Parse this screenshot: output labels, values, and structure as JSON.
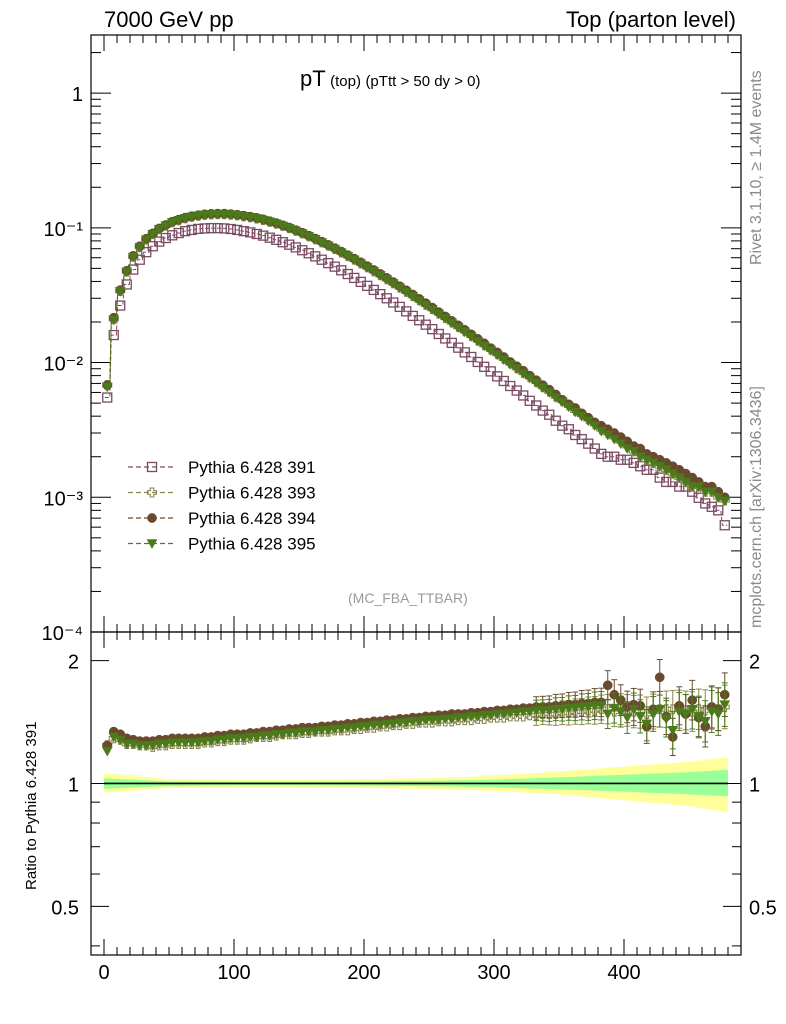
{
  "header": {
    "left": "7000 GeV pp",
    "right": "Top (parton level)"
  },
  "plot_title": {
    "main": "pT",
    "sub1": "(top)",
    "sub2": "(pTtt > 50 dy > 0)"
  },
  "analysis_tag": "(MC_FBA_TTBAR)",
  "side_labels": {
    "rivet": "Rivet 3.1.10, ≥ 1.4M events",
    "mcplots": "mcplots.cern.ch [arXiv:1306.3436]"
  },
  "colors": {
    "s391": "#7b4a62",
    "s393": "#8c8650",
    "s394": "#6a4a2e",
    "s395": "#4a7a1a",
    "band_outer": "#ffff99",
    "band_inner": "#99ff99"
  },
  "chart_data": [
    {
      "type": "scatter",
      "panel": "main",
      "title": "pT (top) (pTtt > 50 dy > 0)",
      "xlabel": "",
      "ylabel": "",
      "xlim": [
        -10,
        490
      ],
      "ylim": [
        0.0001,
        2.7
      ],
      "yscale": "log",
      "y_tick_labels": [
        "10⁻⁴",
        "10⁻³",
        "10⁻²",
        "10⁻¹",
        "1"
      ],
      "x": [
        2.5,
        7.5,
        12.5,
        17.5,
        22.5,
        27.5,
        32.5,
        37.5,
        42.5,
        47.5,
        52.5,
        57.5,
        62.5,
        67.5,
        72.5,
        77.5,
        82.5,
        87.5,
        92.5,
        97.5,
        102.5,
        107.5,
        112.5,
        117.5,
        122.5,
        127.5,
        132.5,
        137.5,
        142.5,
        147.5,
        152.5,
        157.5,
        162.5,
        167.5,
        172.5,
        177.5,
        182.5,
        187.5,
        192.5,
        197.5,
        202.5,
        207.5,
        212.5,
        217.5,
        222.5,
        227.5,
        232.5,
        237.5,
        242.5,
        247.5,
        252.5,
        257.5,
        262.5,
        267.5,
        272.5,
        277.5,
        282.5,
        287.5,
        292.5,
        297.5,
        302.5,
        307.5,
        312.5,
        317.5,
        322.5,
        327.5,
        332.5,
        337.5,
        342.5,
        347.5,
        352.5,
        357.5,
        362.5,
        367.5,
        372.5,
        377.5,
        382.5,
        387.5,
        392.5,
        397.5,
        402.5,
        407.5,
        412.5,
        417.5,
        422.5,
        427.5,
        432.5,
        437.5,
        442.5,
        447.5,
        452.5,
        457.5,
        462.5,
        467.5,
        472.5,
        477.5
      ],
      "series": [
        {
          "name": "Pythia 6.428 391",
          "marker": "open-square",
          "values": [
            0.0055,
            0.016,
            0.0265,
            0.038,
            0.049,
            0.058,
            0.066,
            0.073,
            0.079,
            0.084,
            0.088,
            0.0915,
            0.0945,
            0.0965,
            0.0982,
            0.099,
            0.0995,
            0.0995,
            0.099,
            0.098,
            0.0965,
            0.0945,
            0.0925,
            0.09,
            0.0875,
            0.0845,
            0.0815,
            0.0782,
            0.075,
            0.0716,
            0.0682,
            0.0648,
            0.0614,
            0.058,
            0.0547,
            0.0515,
            0.0484,
            0.0454,
            0.0425,
            0.0397,
            0.0371,
            0.0346,
            0.0322,
            0.03,
            0.0279,
            0.0259,
            0.024,
            0.0222,
            0.0206,
            0.0191,
            0.0177,
            0.0163,
            0.0151,
            0.014,
            0.0129,
            0.0119,
            0.011,
            0.0101,
            0.0093,
            0.0086,
            0.0079,
            0.0073,
            0.0067,
            0.0062,
            0.0057,
            0.0052,
            0.0048,
            0.0044,
            0.0041,
            0.0037,
            0.0034,
            0.0032,
            0.0029,
            0.0027,
            0.0025,
            0.0023,
            0.0021,
            0.002,
            0.002,
            0.0019,
            0.0019,
            0.0018,
            0.0017,
            0.0016,
            0.0016,
            0.0014,
            0.0013,
            0.0013,
            0.0012,
            0.0012,
            0.0011,
            0.00099,
            0.0009,
            0.00085,
            0.0008,
            0.00062
          ]
        },
        {
          "name": "Pythia 6.428 393",
          "marker": "open-cross",
          "values": [
            0.0068,
            0.021,
            0.034,
            0.0475,
            0.061,
            0.072,
            0.082,
            0.09,
            0.098,
            0.104,
            0.11,
            0.114,
            0.118,
            0.121,
            0.123,
            0.125,
            0.126,
            0.1265,
            0.1265,
            0.1255,
            0.124,
            0.122,
            0.12,
            0.1175,
            0.1145,
            0.111,
            0.1075,
            0.1035,
            0.0995,
            0.0952,
            0.091,
            0.0866,
            0.0823,
            0.078,
            0.0738,
            0.0697,
            0.0657,
            0.0618,
            0.0581,
            0.0545,
            0.051,
            0.0477,
            0.0446,
            0.0416,
            0.0388,
            0.0361,
            0.0336,
            0.0312,
            0.029,
            0.0269,
            0.025,
            0.0232,
            0.0215,
            0.0199,
            0.0184,
            0.0171,
            0.0158,
            0.0146,
            0.0135,
            0.0125,
            0.0116,
            0.0107,
            0.0099,
            0.0091,
            0.0084,
            0.0078,
            0.0072,
            0.0066,
            0.0061,
            0.0056,
            0.0052,
            0.0048,
            0.0044,
            0.0041,
            0.0038,
            0.0035,
            0.0032,
            0.003,
            0.0028,
            0.0026,
            0.0024,
            0.0022,
            0.0021,
            0.0019,
            0.0018,
            0.0017,
            0.0016,
            0.0015,
            0.0014,
            0.0013,
            0.0012,
            0.0012,
            0.0011,
            0.0011,
            0.001,
            0.00095
          ]
        },
        {
          "name": "Pythia 6.428 394",
          "marker": "filled-circle",
          "values": [
            0.0068,
            0.0215,
            0.0345,
            0.048,
            0.062,
            0.073,
            0.083,
            0.091,
            0.099,
            0.105,
            0.111,
            0.115,
            0.119,
            0.122,
            0.124,
            0.126,
            0.127,
            0.1275,
            0.1275,
            0.1265,
            0.125,
            0.123,
            0.121,
            0.1185,
            0.1155,
            0.112,
            0.1085,
            0.1045,
            0.1005,
            0.0962,
            0.092,
            0.0876,
            0.0833,
            0.079,
            0.0748,
            0.0707,
            0.0667,
            0.0628,
            0.0591,
            0.0555,
            0.052,
            0.0487,
            0.0455,
            0.0425,
            0.0396,
            0.0369,
            0.0344,
            0.032,
            0.0297,
            0.0276,
            0.0256,
            0.0237,
            0.022,
            0.0204,
            0.0189,
            0.0175,
            0.0162,
            0.015,
            0.0139,
            0.0128,
            0.0119,
            0.011,
            0.0101,
            0.0094,
            0.0087,
            0.008,
            0.0074,
            0.0068,
            0.0063,
            0.0058,
            0.0053,
            0.0049,
            0.0046,
            0.0042,
            0.0039,
            0.0036,
            0.0034,
            0.0032,
            0.003,
            0.0028,
            0.0026,
            0.0024,
            0.0023,
            0.0021,
            0.002,
            0.0019,
            0.0018,
            0.0017,
            0.0016,
            0.0015,
            0.0014,
            0.0013,
            0.0012,
            0.0012,
            0.0011,
            0.001
          ]
        },
        {
          "name": "Pythia 6.428 395",
          "marker": "filled-triangle-down",
          "values": [
            0.0066,
            0.0208,
            0.0338,
            0.0472,
            0.0608,
            0.0718,
            0.0818,
            0.0898,
            0.0978,
            0.1038,
            0.1098,
            0.1138,
            0.1178,
            0.1208,
            0.1228,
            0.1248,
            0.1258,
            0.1263,
            0.1263,
            0.1253,
            0.1238,
            0.1218,
            0.1198,
            0.1173,
            0.1143,
            0.1108,
            0.1073,
            0.1033,
            0.0993,
            0.095,
            0.0908,
            0.0864,
            0.0821,
            0.0778,
            0.0736,
            0.0695,
            0.0655,
            0.0616,
            0.0579,
            0.0543,
            0.0508,
            0.0475,
            0.0444,
            0.0414,
            0.0386,
            0.0359,
            0.0334,
            0.031,
            0.0288,
            0.0267,
            0.0248,
            0.023,
            0.0213,
            0.0197,
            0.0182,
            0.0169,
            0.0156,
            0.0144,
            0.0133,
            0.0123,
            0.0114,
            0.0105,
            0.0097,
            0.009,
            0.0083,
            0.0077,
            0.0071,
            0.0065,
            0.006,
            0.0055,
            0.0051,
            0.0047,
            0.0043,
            0.004,
            0.0037,
            0.0034,
            0.0031,
            0.0029,
            0.0027,
            0.0025,
            0.0023,
            0.0022,
            0.002,
            0.0019,
            0.0018,
            0.0017,
            0.0016,
            0.0015,
            0.0014,
            0.0013,
            0.0012,
            0.0012,
            0.0011,
            0.0011,
            0.001,
            0.00094
          ]
        }
      ],
      "legend": [
        "Pythia 6.428 391",
        "Pythia 6.428 393",
        "Pythia 6.428 394",
        "Pythia 6.428 395"
      ]
    },
    {
      "type": "scatter",
      "panel": "ratio",
      "ylabel": "Ratio to Pythia 6.428 391",
      "xlim": [
        -10,
        490
      ],
      "ylim": [
        0.38,
        2.35
      ],
      "yscale": "log",
      "x_tick_labels": [
        "0",
        "100",
        "200",
        "300",
        "400"
      ],
      "y_tick_labels": [
        "0.5",
        "1",
        "2"
      ],
      "reference_line": 1.0,
      "band_outer": {
        "x": [
          0,
          50,
          100,
          150,
          200,
          250,
          300,
          350,
          400,
          450,
          480
        ],
        "lo": [
          0.95,
          0.975,
          0.98,
          0.98,
          0.975,
          0.97,
          0.96,
          0.94,
          0.91,
          0.88,
          0.85
        ],
        "hi": [
          1.06,
          1.025,
          1.02,
          1.02,
          1.025,
          1.03,
          1.045,
          1.07,
          1.1,
          1.13,
          1.16
        ]
      },
      "band_inner": {
        "x": [
          0,
          50,
          100,
          150,
          200,
          250,
          300,
          350,
          400,
          450,
          480
        ],
        "lo": [
          0.97,
          0.985,
          0.99,
          0.99,
          0.988,
          0.985,
          0.978,
          0.968,
          0.955,
          0.94,
          0.93
        ],
        "hi": [
          1.03,
          1.012,
          1.01,
          1.01,
          1.012,
          1.015,
          1.022,
          1.035,
          1.05,
          1.065,
          1.08
        ]
      },
      "series": [
        {
          "name": "Pythia 6.428 393",
          "values": [
            1.24,
            1.29,
            1.28,
            1.25,
            1.25,
            1.24,
            1.24,
            1.23,
            1.24,
            1.24,
            1.25,
            1.25,
            1.25,
            1.25,
            1.25,
            1.26,
            1.26,
            1.27,
            1.27,
            1.28,
            1.28,
            1.28,
            1.29,
            1.3,
            1.3,
            1.3,
            1.31,
            1.32,
            1.32,
            1.32,
            1.33,
            1.33,
            1.34,
            1.34,
            1.34,
            1.35,
            1.35,
            1.35,
            1.36,
            1.36,
            1.37,
            1.37,
            1.38,
            1.38,
            1.39,
            1.39,
            1.4,
            1.4,
            1.41,
            1.41,
            1.41,
            1.42,
            1.42,
            1.42,
            1.43,
            1.43,
            1.43,
            1.44,
            1.44,
            1.45,
            1.45,
            1.45,
            1.46,
            1.46,
            1.46,
            1.47,
            1.47,
            1.48,
            1.48,
            1.48,
            1.49,
            1.49,
            1.5,
            1.5,
            1.51,
            1.51,
            1.52,
            1.52,
            1.5,
            1.52,
            1.51,
            1.5,
            1.5,
            1.48,
            1.5,
            1.52,
            1.52,
            1.52,
            1.52,
            1.51,
            1.5,
            1.52,
            1.51,
            1.53,
            1.52,
            1.54
          ]
        },
        {
          "name": "Pythia 6.428 394",
          "values": [
            1.24,
            1.34,
            1.32,
            1.29,
            1.28,
            1.27,
            1.27,
            1.27,
            1.28,
            1.28,
            1.29,
            1.29,
            1.29,
            1.29,
            1.29,
            1.3,
            1.3,
            1.31,
            1.31,
            1.32,
            1.32,
            1.32,
            1.33,
            1.33,
            1.34,
            1.34,
            1.35,
            1.35,
            1.36,
            1.36,
            1.37,
            1.37,
            1.37,
            1.38,
            1.38,
            1.39,
            1.39,
            1.4,
            1.4,
            1.41,
            1.41,
            1.42,
            1.42,
            1.43,
            1.43,
            1.44,
            1.44,
            1.45,
            1.45,
            1.46,
            1.46,
            1.47,
            1.47,
            1.48,
            1.48,
            1.48,
            1.49,
            1.49,
            1.5,
            1.5,
            1.51,
            1.51,
            1.52,
            1.52,
            1.53,
            1.53,
            1.54,
            1.54,
            1.54,
            1.55,
            1.55,
            1.56,
            1.56,
            1.57,
            1.57,
            1.58,
            1.58,
            1.74,
            1.65,
            1.6,
            1.54,
            1.56,
            1.55,
            1.38,
            1.52,
            1.82,
            1.46,
            1.3,
            1.55,
            1.48,
            1.6,
            1.45,
            1.38,
            1.54,
            1.52,
            1.65
          ]
        },
        {
          "name": "Pythia 6.428 395",
          "values": [
            1.2,
            1.3,
            1.28,
            1.25,
            1.25,
            1.24,
            1.24,
            1.24,
            1.25,
            1.25,
            1.26,
            1.26,
            1.26,
            1.26,
            1.26,
            1.27,
            1.27,
            1.28,
            1.28,
            1.29,
            1.29,
            1.29,
            1.3,
            1.3,
            1.31,
            1.31,
            1.32,
            1.32,
            1.33,
            1.33,
            1.34,
            1.34,
            1.34,
            1.35,
            1.35,
            1.36,
            1.36,
            1.37,
            1.37,
            1.38,
            1.38,
            1.39,
            1.39,
            1.4,
            1.4,
            1.41,
            1.41,
            1.42,
            1.42,
            1.43,
            1.43,
            1.43,
            1.44,
            1.44,
            1.45,
            1.45,
            1.46,
            1.46,
            1.47,
            1.47,
            1.48,
            1.48,
            1.49,
            1.49,
            1.5,
            1.5,
            1.51,
            1.51,
            1.51,
            1.52,
            1.52,
            1.53,
            1.53,
            1.54,
            1.54,
            1.55,
            1.55,
            1.48,
            1.53,
            1.5,
            1.45,
            1.52,
            1.46,
            1.4,
            1.48,
            1.52,
            1.44,
            1.35,
            1.5,
            1.48,
            1.52,
            1.46,
            1.42,
            1.5,
            1.48,
            1.56
          ]
        }
      ]
    }
  ]
}
